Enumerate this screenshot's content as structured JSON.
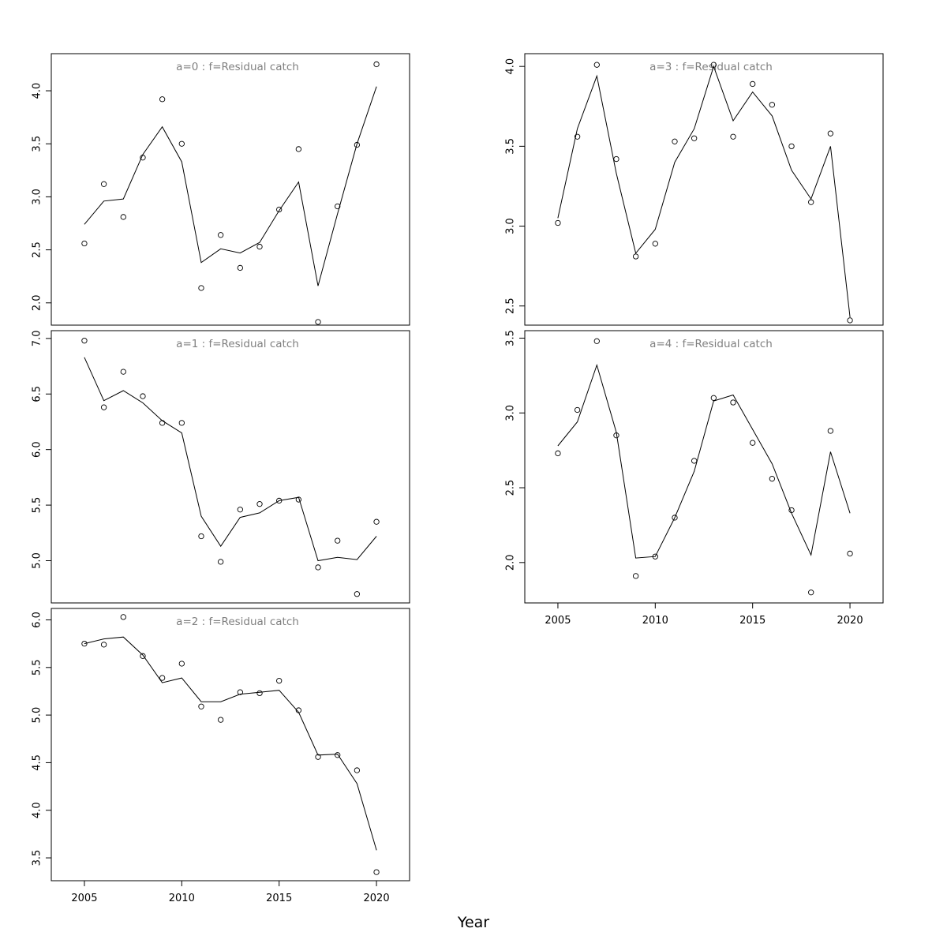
{
  "figure": {
    "xlabel": "Year"
  },
  "chart_data": [
    {
      "type": "line",
      "title": "a=0 : f=Residual catch",
      "x": [
        2005,
        2006,
        2007,
        2008,
        2009,
        2010,
        2011,
        2012,
        2013,
        2014,
        2015,
        2016,
        2017,
        2018,
        2019,
        2020
      ],
      "series": [
        {
          "kind": "observed",
          "style": "points",
          "values": [
            2.56,
            3.12,
            2.81,
            3.37,
            3.92,
            3.5,
            2.14,
            2.64,
            2.33,
            2.53,
            2.88,
            3.45,
            1.82,
            2.91,
            3.49,
            4.25
          ]
        },
        {
          "kind": "fitted",
          "style": "line",
          "values": [
            2.74,
            2.96,
            2.98,
            3.4,
            3.66,
            3.33,
            2.38,
            2.51,
            2.47,
            2.57,
            2.87,
            3.14,
            2.16,
            2.84,
            3.5,
            4.04
          ]
        }
      ],
      "xlim": [
        2003.3,
        2021.7
      ],
      "ylim": [
        1.79,
        4.35
      ],
      "yticks": [
        2.0,
        2.5,
        3.0,
        3.5,
        4.0
      ],
      "ytick_labels": [
        "2.0",
        "2.5",
        "3.0",
        "3.5",
        "4.0"
      ],
      "xticks_shown": false
    },
    {
      "type": "line",
      "title": "a=1 : f=Residual catch",
      "x": [
        2005,
        2006,
        2007,
        2008,
        2009,
        2010,
        2011,
        2012,
        2013,
        2014,
        2015,
        2016,
        2017,
        2018,
        2019,
        2020
      ],
      "series": [
        {
          "kind": "observed",
          "style": "points",
          "values": [
            6.98,
            6.38,
            6.7,
            6.48,
            6.24,
            6.24,
            5.22,
            4.99,
            5.46,
            5.51,
            5.54,
            5.55,
            4.94,
            5.18,
            4.7,
            5.35
          ]
        },
        {
          "kind": "fitted",
          "style": "line",
          "values": [
            6.83,
            6.44,
            6.53,
            6.42,
            6.26,
            6.15,
            5.4,
            5.13,
            5.39,
            5.43,
            5.54,
            5.57,
            5.0,
            5.03,
            5.01,
            5.22
          ]
        }
      ],
      "xlim": [
        2003.3,
        2021.7
      ],
      "ylim": [
        4.62,
        7.07
      ],
      "yticks": [
        5.0,
        5.5,
        6.0,
        6.5,
        7.0
      ],
      "ytick_labels": [
        "5.0",
        "5.5",
        "6.0",
        "6.5",
        "7.0"
      ],
      "xticks_shown": false
    },
    {
      "type": "line",
      "title": "a=2 : f=Residual catch",
      "x": [
        2005,
        2006,
        2007,
        2008,
        2009,
        2010,
        2011,
        2012,
        2013,
        2014,
        2015,
        2016,
        2017,
        2018,
        2019,
        2020
      ],
      "series": [
        {
          "kind": "observed",
          "style": "points",
          "values": [
            5.75,
            5.74,
            6.03,
            5.62,
            5.39,
            5.54,
            5.09,
            4.95,
            5.24,
            5.23,
            5.36,
            5.05,
            4.56,
            4.58,
            4.42,
            3.35
          ]
        },
        {
          "kind": "fitted",
          "style": "line",
          "values": [
            5.75,
            5.8,
            5.82,
            5.63,
            5.34,
            5.39,
            5.14,
            5.14,
            5.22,
            5.24,
            5.26,
            5.03,
            4.58,
            4.59,
            4.28,
            3.58
          ]
        }
      ],
      "xlim": [
        2003.3,
        2021.7
      ],
      "ylim": [
        3.26,
        6.12
      ],
      "yticks": [
        3.5,
        4.0,
        4.5,
        5.0,
        5.5,
        6.0
      ],
      "ytick_labels": [
        "3.5",
        "4.0",
        "4.5",
        "5.0",
        "5.5",
        "6.0"
      ],
      "xticks": [
        2005,
        2010,
        2015,
        2020
      ],
      "xtick_labels": [
        "2005",
        "2010",
        "2015",
        "2020"
      ],
      "xticks_shown": true
    },
    {
      "type": "line",
      "title": "a=3 : f=Residual catch",
      "x": [
        2005,
        2006,
        2007,
        2008,
        2009,
        2010,
        2011,
        2012,
        2013,
        2014,
        2015,
        2016,
        2017,
        2018,
        2019,
        2020
      ],
      "series": [
        {
          "kind": "observed",
          "style": "points",
          "values": [
            3.02,
            3.56,
            4.01,
            3.42,
            2.81,
            2.89,
            3.53,
            3.55,
            4.01,
            3.56,
            3.89,
            3.76,
            3.5,
            3.15,
            3.58,
            2.41
          ]
        },
        {
          "kind": "fitted",
          "style": "line",
          "values": [
            3.05,
            3.61,
            3.94,
            3.33,
            2.83,
            2.98,
            3.4,
            3.61,
            4.0,
            3.66,
            3.84,
            3.69,
            3.35,
            3.17,
            3.5,
            2.43
          ]
        }
      ],
      "xlim": [
        2003.3,
        2021.7
      ],
      "ylim": [
        2.38,
        4.08
      ],
      "yticks": [
        2.5,
        3.0,
        3.5,
        4.0
      ],
      "ytick_labels": [
        "2.5",
        "3.0",
        "3.5",
        "4.0"
      ],
      "xticks_shown": false
    },
    {
      "type": "line",
      "title": "a=4 : f=Residual catch",
      "x": [
        2005,
        2006,
        2007,
        2008,
        2009,
        2010,
        2011,
        2012,
        2013,
        2014,
        2015,
        2016,
        2017,
        2018,
        2019,
        2020
      ],
      "series": [
        {
          "kind": "observed",
          "style": "points",
          "values": [
            2.73,
            3.02,
            3.48,
            2.85,
            1.91,
            2.04,
            2.3,
            2.68,
            3.1,
            3.07,
            2.8,
            2.56,
            2.35,
            1.8,
            2.88,
            2.06
          ]
        },
        {
          "kind": "fitted",
          "style": "line",
          "values": [
            2.78,
            2.94,
            3.32,
            2.87,
            2.03,
            2.04,
            2.3,
            2.61,
            3.08,
            3.12,
            2.89,
            2.66,
            2.33,
            2.05,
            2.74,
            2.33
          ]
        }
      ],
      "xlim": [
        2003.3,
        2021.7
      ],
      "ylim": [
        1.73,
        3.55
      ],
      "yticks": [
        2.0,
        2.5,
        3.0,
        3.5
      ],
      "ytick_labels": [
        "2.0",
        "2.5",
        "3.0",
        "3.5"
      ],
      "xticks": [
        2005,
        2010,
        2015,
        2020
      ],
      "xtick_labels": [
        "2005",
        "2010",
        "2015",
        "2020"
      ],
      "xticks_shown": true
    }
  ]
}
